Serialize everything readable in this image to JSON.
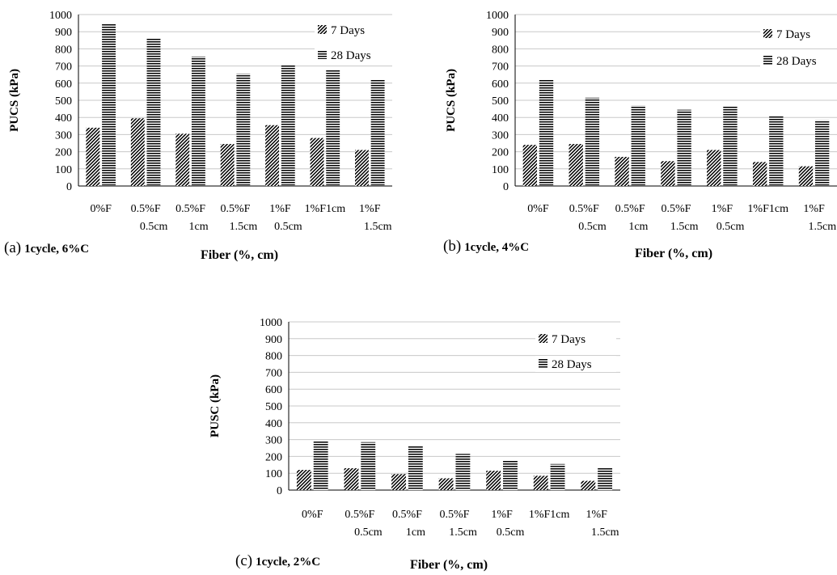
{
  "chart_data": [
    {
      "type": "bar",
      "panel_label": "(a)",
      "panel_caption": "1cycle, 6%C",
      "xlabel": "Fiber (%, cm)",
      "ylabel": "PUCS (kPa)",
      "ylim": [
        0,
        1000
      ],
      "yticks": [
        0,
        100,
        200,
        300,
        400,
        500,
        600,
        700,
        800,
        900,
        1000
      ],
      "grid": true,
      "legend_position": "top-right",
      "categories": [
        [
          "0%F"
        ],
        [
          "0.5%F",
          "0.5cm"
        ],
        [
          "0.5%F",
          "1cm"
        ],
        [
          "0.5%F",
          "1.5cm"
        ],
        [
          "1%F",
          "0.5cm"
        ],
        [
          "1%F1cm"
        ],
        [
          "1%F",
          "1.5cm"
        ]
      ],
      "series": [
        {
          "name": "7 Days",
          "pattern": "diagonal",
          "values": [
            340,
            395,
            305,
            245,
            355,
            280,
            210
          ]
        },
        {
          "name": "28 Days",
          "pattern": "horizontal",
          "values": [
            945,
            860,
            755,
            655,
            710,
            680,
            620
          ]
        }
      ]
    },
    {
      "type": "bar",
      "panel_label": "(b)",
      "panel_caption": "1cycle, 4%C",
      "xlabel": "Fiber (%, cm)",
      "ylabel": "PUCS (kPa)",
      "ylim": [
        0,
        1000
      ],
      "yticks": [
        0,
        100,
        200,
        300,
        400,
        500,
        600,
        700,
        800,
        900,
        1000
      ],
      "grid": true,
      "legend_position": "top-right",
      "categories": [
        [
          "0%F"
        ],
        [
          "0.5%F",
          "0.5cm"
        ],
        [
          "0.5%F",
          "1cm"
        ],
        [
          "0.5%F",
          "1.5cm"
        ],
        [
          "1%F",
          "0.5cm"
        ],
        [
          "1%F1cm"
        ],
        [
          "1%F",
          "1.5cm"
        ]
      ],
      "series": [
        {
          "name": "7 Days",
          "pattern": "diagonal",
          "values": [
            240,
            245,
            170,
            145,
            210,
            140,
            115
          ]
        },
        {
          "name": "28 Days",
          "pattern": "horizontal",
          "values": [
            620,
            515,
            470,
            445,
            465,
            410,
            385
          ]
        }
      ]
    },
    {
      "type": "bar",
      "panel_label": "(c)",
      "panel_caption": "1cycle, 2%C",
      "xlabel": "Fiber (%, cm)",
      "ylabel": "PUSC (kPa)",
      "ylim": [
        0,
        1000
      ],
      "yticks": [
        0,
        100,
        200,
        300,
        400,
        500,
        600,
        700,
        800,
        900,
        1000
      ],
      "grid": true,
      "legend_position": "top-right",
      "categories": [
        [
          "0%F"
        ],
        [
          "0.5%F",
          "0.5cm"
        ],
        [
          "0.5%F",
          "1cm"
        ],
        [
          "0.5%F",
          "1.5cm"
        ],
        [
          "1%F",
          "0.5cm"
        ],
        [
          "1%F1cm"
        ],
        [
          "1%F",
          "1.5cm"
        ]
      ],
      "series": [
        {
          "name": "7 Days",
          "pattern": "diagonal",
          "values": [
            120,
            130,
            95,
            70,
            115,
            85,
            55
          ]
        },
        {
          "name": "28 Days",
          "pattern": "horizontal",
          "values": [
            295,
            285,
            260,
            215,
            180,
            155,
            135
          ]
        }
      ]
    }
  ]
}
